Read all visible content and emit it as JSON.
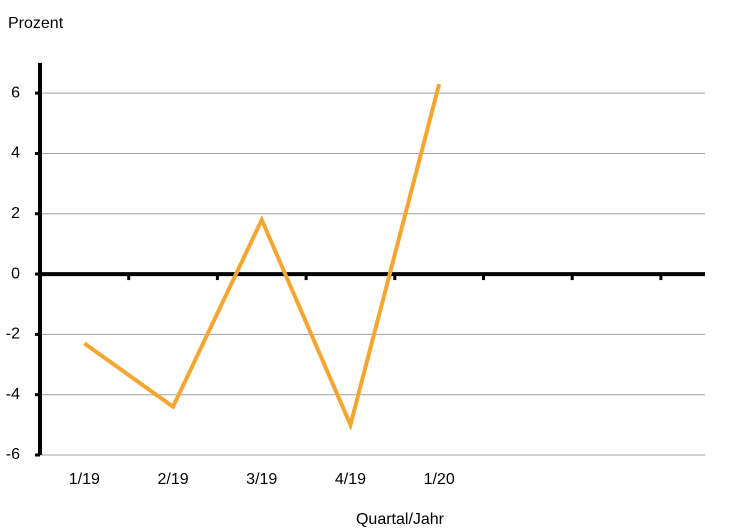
{
  "chart_data": {
    "type": "line",
    "y_label": "Prozent",
    "x_label": "Quartal/Jahr",
    "categories": [
      "1/19",
      "2/19",
      "3/19",
      "4/19",
      "1/20",
      null,
      null,
      null
    ],
    "series": [
      {
        "name": null,
        "color": "#f5a631",
        "values": [
          -2.3,
          -4.4,
          1.8,
          -5.0,
          6.3,
          null,
          null,
          null
        ]
      }
    ],
    "ylim": [
      -6,
      7
    ],
    "yticks": [
      -6,
      -4,
      -2,
      0,
      2,
      4,
      6
    ],
    "grid": true
  }
}
